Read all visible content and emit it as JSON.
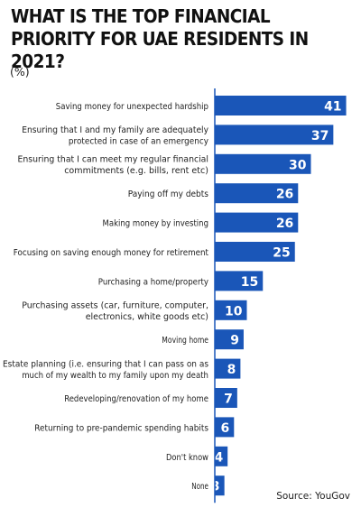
{
  "chart_data": {
    "type": "bar",
    "orientation": "horizontal",
    "title": "WHAT IS THE TOP FINANCIAL PRIORITY FOR UAE RESIDENTS IN 2021?",
    "unit": "(%)",
    "categories": [
      [
        "Saving money for unexpected hardship"
      ],
      [
        "Ensuring that I and my family are adequately",
        "protected in case of an emergency"
      ],
      [
        "Ensuring that I can meet my regular financial",
        "commitments (e.g. bills, rent etc)"
      ],
      [
        "Paying off my debts"
      ],
      [
        "Making money by investing"
      ],
      [
        "Focusing on saving enough money for retirement"
      ],
      [
        "Purchasing a home/property"
      ],
      [
        "Purchasing assets (car, furniture, computer,",
        "electronics, white goods etc)"
      ],
      [
        "Moving home"
      ],
      [
        "Estate planning (i.e. ensuring that I can pass on as",
        "much of my wealth to my family upon my death"
      ],
      [
        "Redeveloping/renovation of my home"
      ],
      [
        "Returning to pre-pandemic spending habits"
      ],
      [
        "Don't know"
      ],
      [
        "None"
      ]
    ],
    "values": [
      41,
      37,
      30,
      26,
      26,
      25,
      15,
      10,
      9,
      8,
      7,
      6,
      4,
      3
    ],
    "bar_color": "#1a56b8",
    "value_label_color": "#ffffff",
    "source": "Source: YouGov"
  }
}
